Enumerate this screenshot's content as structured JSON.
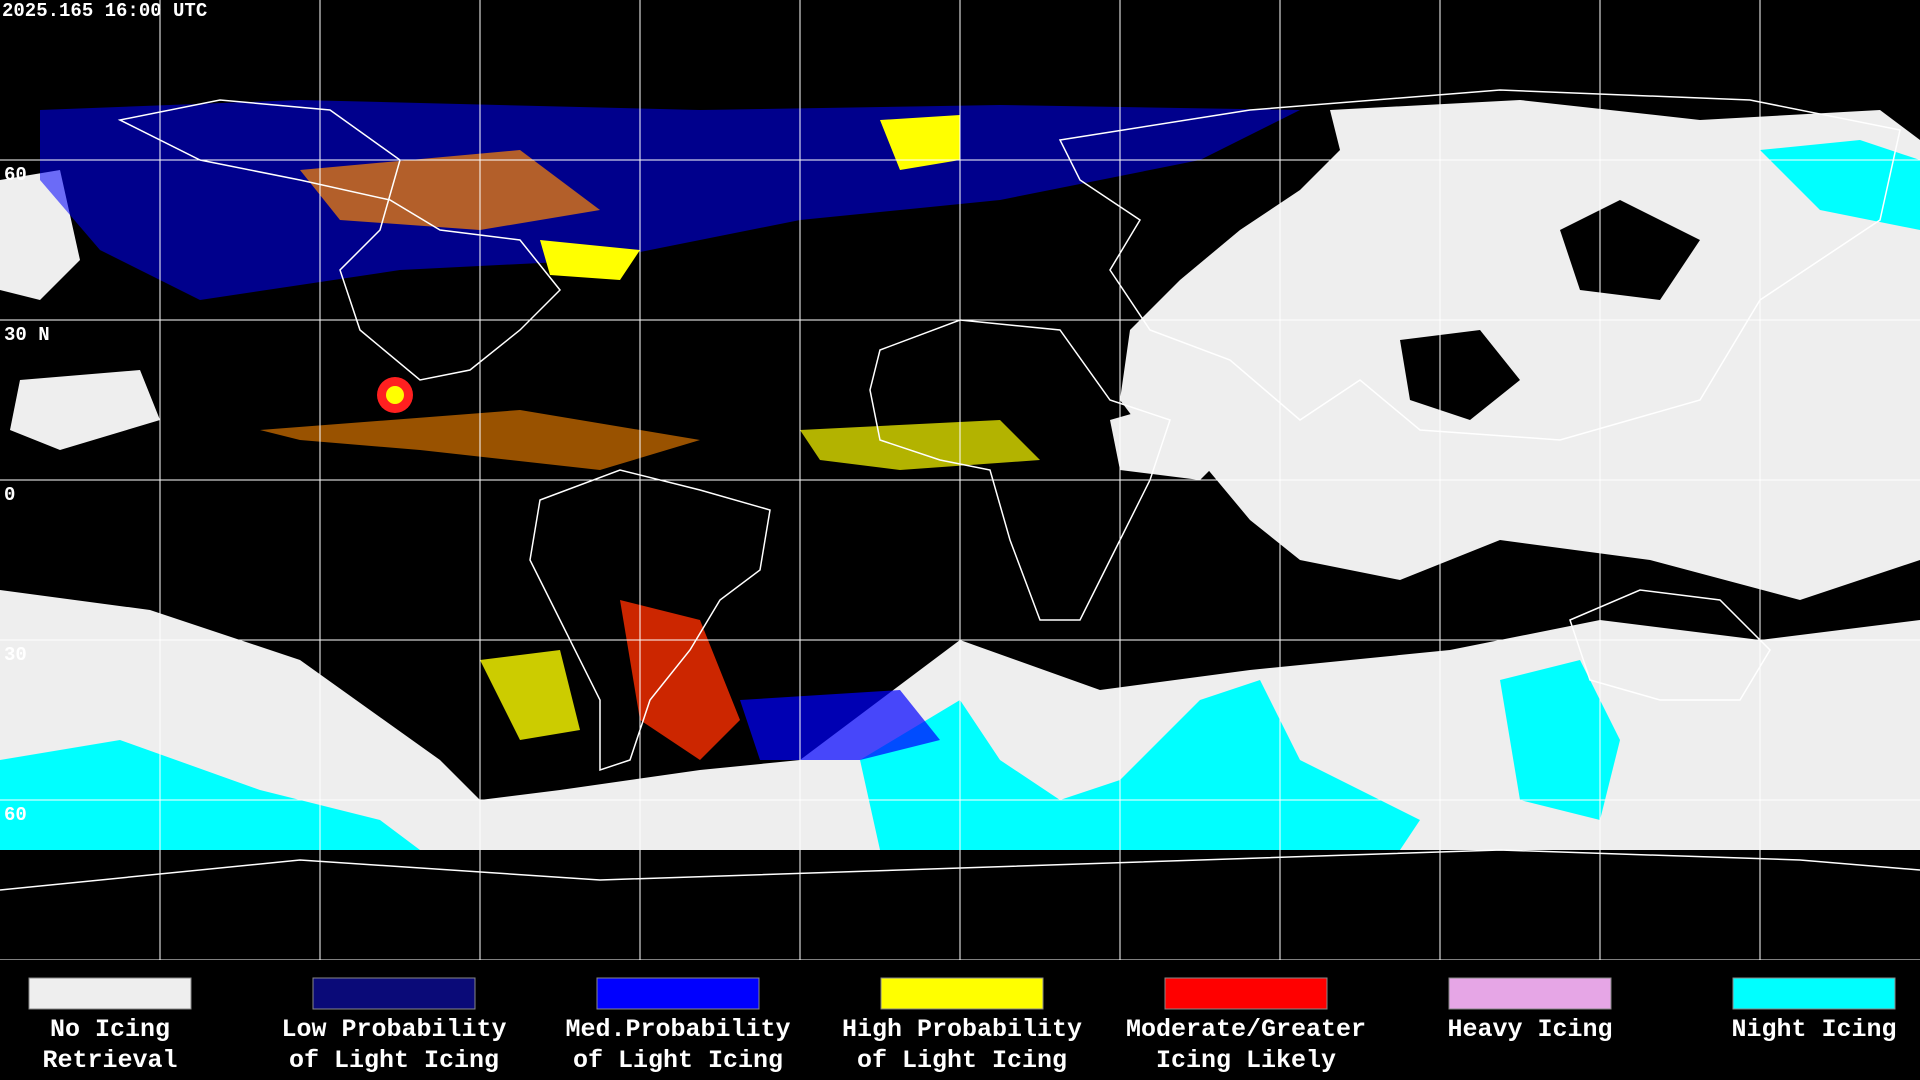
{
  "header": {
    "timestamp": "2025.165 16:00 UTC"
  },
  "map": {
    "latitude_labels": [
      "60",
      "30 N",
      "0",
      "30",
      "60"
    ]
  },
  "legend": {
    "items": [
      {
        "label_lines": [
          "No Icing",
          "Retrieval"
        ],
        "color": "#eeeeee"
      },
      {
        "label_lines": [
          "Low Probability",
          "of Light Icing"
        ],
        "color": "#0a0a78"
      },
      {
        "label_lines": [
          "Med.Probability",
          "of Light Icing"
        ],
        "color": "#0000ff"
      },
      {
        "label_lines": [
          "High Probability",
          "of Light Icing"
        ],
        "color": "#ffff00"
      },
      {
        "label_lines": [
          "Moderate/Greater",
          "Icing Likely"
        ],
        "color": "#ff0000"
      },
      {
        "label_lines": [
          "Heavy Icing"
        ],
        "color": "#e6a6e6"
      },
      {
        "label_lines": [
          "Night Icing"
        ],
        "color": "#00ffff"
      }
    ]
  }
}
